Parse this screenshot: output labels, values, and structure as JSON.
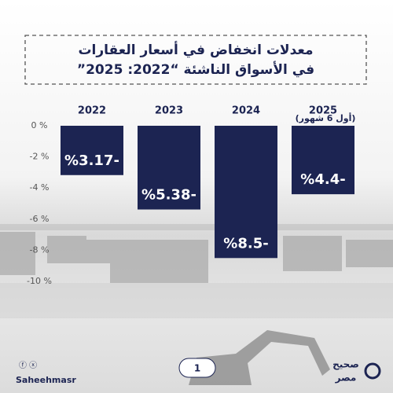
{
  "chart_data": {
    "type": "bar",
    "title": [
      "معدلات انخفاض في أسعار العقارات",
      "في الأسواق الناشئة “2022: 2025”"
    ],
    "categories": [
      "2022",
      "2023",
      "2024",
      "2025"
    ],
    "annotations": [
      "(أول 6 شهور)"
    ],
    "values": [
      -3.17,
      -5.38,
      -8.5,
      -4.4
    ],
    "value_labels": [
      "%3.17-",
      "%5.38-",
      "%8.5-",
      "%4.4-"
    ],
    "color": "#1c2452",
    "ylim": [
      -10,
      0
    ],
    "yticks": [
      {
        "value": 0,
        "label": "0 %"
      },
      {
        "value": -2,
        "label": "-2 %"
      },
      {
        "value": -4,
        "label": "-4 %"
      },
      {
        "value": -6,
        "label": "-6 %"
      },
      {
        "value": -8,
        "label": "-8 %"
      },
      {
        "value": -10,
        "label": "-10 %"
      }
    ]
  },
  "footer": {
    "handle": "Saheehmasr",
    "page": "1",
    "logo": [
      "صحيح",
      "مصر"
    ]
  }
}
